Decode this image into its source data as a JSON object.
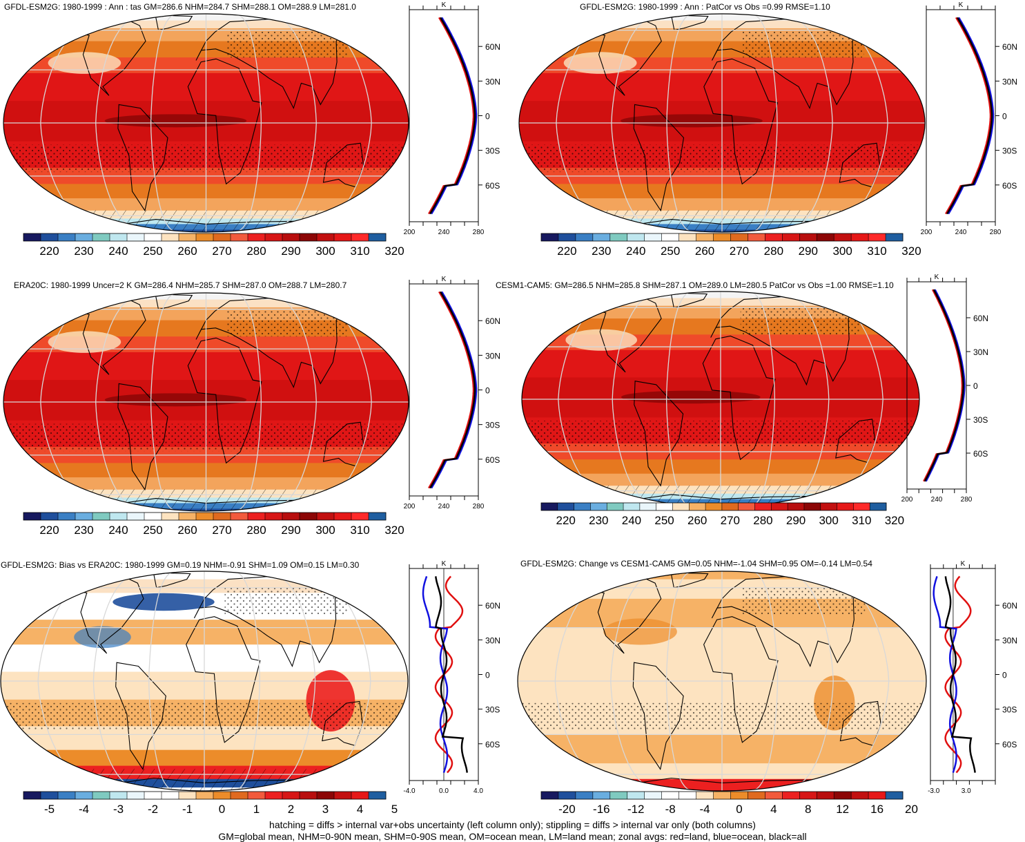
{
  "footer": {
    "line1": "hatching = diffs > internal var+obs uncertainty (left column only); stippling = diffs > internal var only (both columns)",
    "line2": "GM=global mean, NHM=0-90N mean, SHM=0-90S mean, OM=ocean mean, LM=land mean; zonal avgs: red=land, blue=ocean, black=all"
  },
  "colors": {
    "temp_scale": [
      "#17195f",
      "#1f4f9c",
      "#3a7fc4",
      "#6aaee0",
      "#7fcac0",
      "#bfe7ef",
      "#eaf6fb",
      "#ffffff",
      "#fde3c0",
      "#f6b266",
      "#ec8c2a",
      "#e06a1f",
      "#f25a3c",
      "#ec2020",
      "#d71616",
      "#b80e0e",
      "#8c0606",
      "#c21010",
      "#e61818",
      "#ff2a2a",
      "#1f5ea0"
    ],
    "diff_scale": [
      "#17195f",
      "#1f4f9c",
      "#3a7fc4",
      "#6aaee0",
      "#7fcac0",
      "#bfe7ef",
      "#eaf6fb",
      "#ffffff",
      "#ffffff",
      "#fde3c0",
      "#f6b266",
      "#ec8c2a",
      "#e06a1f",
      "#f25a3c",
      "#ec2020",
      "#d71616",
      "#b80e0e",
      "#8c0606",
      "#c21010",
      "#e61818",
      "#1f5ea0"
    ],
    "land_line": "#e01010",
    "ocean_line": "#1010e0",
    "all_line": "#000000"
  },
  "panels": [
    {
      "id": "model-climatology",
      "title": "GFDL-ESM2G: 1980-1999 : Ann : tas GM=286.6 NHM=284.7 SHM=288.1 OM=288.9 LM=281.0",
      "kind": "temperature",
      "colorbar_labels": [
        "220",
        "230",
        "240",
        "250",
        "260",
        "270",
        "280",
        "290",
        "300",
        "310",
        "320"
      ],
      "zonal": {
        "unit": "K",
        "lat_labels": [
          "60N",
          "30N",
          "0",
          "30S",
          "60S"
        ],
        "x_labels": [
          "200",
          "240",
          "280"
        ]
      }
    },
    {
      "id": "model-patcor",
      "title": "GFDL-ESM2G: 1980-1999 : Ann : PatCor vs Obs =0.99 RMSE=1.10",
      "kind": "temperature",
      "colorbar_labels": [
        "220",
        "230",
        "240",
        "250",
        "260",
        "270",
        "280",
        "290",
        "300",
        "310",
        "320"
      ],
      "zonal": {
        "unit": "K",
        "lat_labels": [
          "60N",
          "30N",
          "0",
          "30S",
          "60S"
        ],
        "x_labels": [
          "200",
          "240",
          "280"
        ]
      }
    },
    {
      "id": "era20c-climatology",
      "title": "ERA20C: 1980-1999 Uncer=2 K GM=286.4 NHM=285.7 SHM=287.0 OM=288.7 LM=280.7",
      "kind": "temperature",
      "colorbar_labels": [
        "220",
        "230",
        "240",
        "250",
        "260",
        "270",
        "280",
        "290",
        "300",
        "310",
        "320"
      ],
      "zonal": {
        "unit": "K",
        "lat_labels": [
          "60N",
          "30N",
          "0",
          "30S",
          "60S"
        ],
        "x_labels": [
          "200",
          "240",
          "280"
        ]
      }
    },
    {
      "id": "cesm1-climatology",
      "title": "CESM1-CAM5: GM=286.5 NHM=285.8 SHM=287.1 OM=289.0 LM=280.5 PatCor vs Obs =1.00 RMSE=1.10",
      "kind": "temperature",
      "colorbar_labels": [
        "220",
        "230",
        "240",
        "250",
        "260",
        "270",
        "280",
        "290",
        "300",
        "310",
        "320"
      ],
      "zonal": {
        "unit": "K",
        "lat_labels": [
          "60N",
          "30N",
          "0",
          "30S",
          "60S"
        ],
        "x_labels": [
          "200",
          "240",
          "280"
        ]
      }
    },
    {
      "id": "bias-vs-era20c",
      "title": "GFDL-ESM2G: Bias vs ERA20C: 1980-1999 GM=0.19 NHM=-0.91 SHM=1.09 OM=0.15 LM=0.30",
      "kind": "bias",
      "colorbar_labels": [
        "-5",
        "-4",
        "-3",
        "-2",
        "-1",
        "0",
        "1",
        "2",
        "3",
        "4",
        "5"
      ],
      "zonal": {
        "unit": "K",
        "lat_labels": [
          "60N",
          "30N",
          "0",
          "30S",
          "60S"
        ],
        "x_labels": [
          "-4.0",
          "0.0",
          "4.0"
        ]
      }
    },
    {
      "id": "change-vs-cesm1",
      "title": "GFDL-ESM2G: Change vs CESM1-CAM5 GM=0.05 NHM=-1.04 SHM=0.95 OM=-0.14 LM=0.54",
      "kind": "change",
      "colorbar_labels": [
        "-20",
        "-16",
        "-12",
        "-8",
        "-4",
        "0",
        "4",
        "8",
        "12",
        "16",
        "20"
      ],
      "zonal": {
        "unit": "K",
        "lat_labels": [
          "60N",
          "30N",
          "0",
          "30S",
          "60S"
        ],
        "x_labels": [
          "-3.0",
          "3.0"
        ]
      }
    }
  ]
}
